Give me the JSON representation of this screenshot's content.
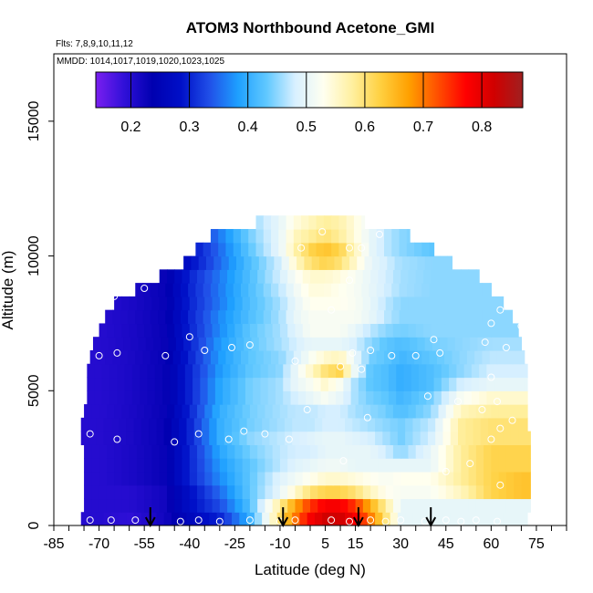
{
  "chart_data": {
    "type": "heatmap",
    "title": "ATOM3 Northbound Acetone_GMI",
    "subtitle_flights": "Flts: 7,8,9,10,11,12",
    "subtitle_dates": "MMDD: 1014,1017,1019,1020,1023,1025",
    "xlabel": "Latitude (deg N)",
    "ylabel": "Altitude (m)",
    "xlim": [
      -85,
      85
    ],
    "ylim": [
      0,
      17500
    ],
    "x_ticks": [
      -85,
      -70,
      -55,
      -40,
      -25,
      -10,
      5,
      15,
      30,
      45,
      60,
      75
    ],
    "x_minor_ticks": [
      -80,
      -75,
      -65,
      -60,
      -50,
      -45,
      -35,
      -30,
      -20,
      -15,
      -5,
      0,
      10,
      20,
      25,
      35,
      40,
      50,
      55,
      65,
      70,
      80,
      85
    ],
    "y_ticks": [
      0,
      5000,
      10000,
      15000
    ],
    "colorbar": {
      "ticks": [
        0.2,
        0.3,
        0.4,
        0.5,
        0.6,
        0.7,
        0.8
      ],
      "range": [
        0.14,
        0.87
      ],
      "colors": [
        "#7a1ff0",
        "#3010d8",
        "#0000b0",
        "#0010c8",
        "#2050e8",
        "#1ea0ff",
        "#60c8ff",
        "#d8f0ff",
        "#fffff0",
        "#fff0a0",
        "#ffd040",
        "#ffa000",
        "#ff5000",
        "#ff0000",
        "#d00000",
        "#a02020"
      ]
    },
    "profile_min_lat": [
      -76,
      -75,
      -75,
      -75,
      -75,
      -75,
      -76,
      -76,
      -75,
      -74,
      -74,
      -74,
      -73,
      -72,
      -70,
      -68,
      -65,
      -58,
      -50,
      -42,
      -38,
      -33,
      -18
    ],
    "profile_max_lat": [
      72,
      73,
      73,
      73,
      73,
      73,
      73,
      72,
      72,
      72,
      72,
      72,
      71,
      70,
      69,
      67,
      64,
      60,
      56,
      47,
      41,
      33,
      18
    ],
    "altitude_levels_m": [
      250,
      750,
      1250,
      1750,
      2250,
      2750,
      3250,
      3750,
      4250,
      4750,
      5250,
      5750,
      6250,
      6750,
      7250,
      7750,
      8250,
      8750,
      9250,
      9750,
      10250,
      10750,
      11250,
      11750,
      12250
    ],
    "latitude_nodes": [
      -80,
      -70,
      -60,
      -48,
      -40,
      -30,
      -20,
      -10,
      -5,
      0,
      5,
      10,
      15,
      20,
      25,
      30,
      40,
      50,
      60,
      70,
      80
    ],
    "acetone_by_altitude_band": [
      [
        0.2,
        0.2,
        0.19,
        0.22,
        0.26,
        0.3,
        0.4,
        0.6,
        0.7,
        0.78,
        0.82,
        0.82,
        0.78,
        0.7,
        0.6,
        0.5,
        0.5,
        0.5,
        0.5,
        0.5,
        0.5
      ],
      [
        0.2,
        0.2,
        0.2,
        0.22,
        0.28,
        0.33,
        0.42,
        0.58,
        0.67,
        0.74,
        0.78,
        0.78,
        0.74,
        0.66,
        0.58,
        0.5,
        0.5,
        0.5,
        0.5,
        0.5,
        0.5
      ],
      [
        0.2,
        0.2,
        0.2,
        0.22,
        0.28,
        0.35,
        0.43,
        0.5,
        0.55,
        0.6,
        0.62,
        0.62,
        0.6,
        0.56,
        0.53,
        0.52,
        0.52,
        0.56,
        0.62,
        0.64,
        0.64
      ],
      [
        0.2,
        0.2,
        0.21,
        0.23,
        0.3,
        0.37,
        0.43,
        0.49,
        0.51,
        0.53,
        0.55,
        0.55,
        0.54,
        0.53,
        0.52,
        0.53,
        0.53,
        0.58,
        0.62,
        0.64,
        0.64
      ],
      [
        0.2,
        0.2,
        0.21,
        0.23,
        0.3,
        0.38,
        0.43,
        0.47,
        0.49,
        0.5,
        0.51,
        0.51,
        0.5,
        0.5,
        0.5,
        0.5,
        0.5,
        0.58,
        0.62,
        0.62,
        0.62
      ],
      [
        0.2,
        0.2,
        0.21,
        0.23,
        0.3,
        0.39,
        0.44,
        0.47,
        0.48,
        0.48,
        0.5,
        0.5,
        0.5,
        0.5,
        0.48,
        0.45,
        0.5,
        0.58,
        0.62,
        0.62,
        0.62
      ],
      [
        0.2,
        0.2,
        0.21,
        0.23,
        0.3,
        0.4,
        0.45,
        0.47,
        0.48,
        0.49,
        0.5,
        0.5,
        0.49,
        0.48,
        0.46,
        0.44,
        0.48,
        0.58,
        0.6,
        0.6,
        0.6
      ],
      [
        0.2,
        0.2,
        0.21,
        0.23,
        0.3,
        0.4,
        0.44,
        0.46,
        0.47,
        0.47,
        0.48,
        0.48,
        0.47,
        0.46,
        0.45,
        0.44,
        0.47,
        0.58,
        0.6,
        0.6,
        0.6
      ],
      [
        0.2,
        0.2,
        0.21,
        0.23,
        0.3,
        0.4,
        0.44,
        0.46,
        0.47,
        0.47,
        0.48,
        0.48,
        0.46,
        0.45,
        0.44,
        0.42,
        0.45,
        0.56,
        0.58,
        0.58,
        0.58
      ],
      [
        0.2,
        0.2,
        0.21,
        0.23,
        0.3,
        0.39,
        0.44,
        0.46,
        0.48,
        0.5,
        0.52,
        0.5,
        0.46,
        0.44,
        0.43,
        0.41,
        0.44,
        0.52,
        0.55,
        0.55,
        0.55
      ],
      [
        0.2,
        0.2,
        0.21,
        0.23,
        0.3,
        0.39,
        0.44,
        0.46,
        0.5,
        0.52,
        0.55,
        0.52,
        0.46,
        0.43,
        0.42,
        0.4,
        0.42,
        0.48,
        0.5,
        0.5,
        0.5
      ],
      [
        0.2,
        0.2,
        0.21,
        0.23,
        0.3,
        0.38,
        0.43,
        0.45,
        0.5,
        0.55,
        0.6,
        0.62,
        0.5,
        0.43,
        0.42,
        0.4,
        0.42,
        0.45,
        0.48,
        0.48,
        0.48
      ],
      [
        0.2,
        0.2,
        0.21,
        0.23,
        0.3,
        0.38,
        0.43,
        0.45,
        0.48,
        0.52,
        0.55,
        0.56,
        0.5,
        0.44,
        0.43,
        0.41,
        0.43,
        0.45,
        0.47,
        0.47,
        0.47
      ],
      [
        0.2,
        0.2,
        0.21,
        0.23,
        0.3,
        0.38,
        0.43,
        0.46,
        0.48,
        0.5,
        0.5,
        0.5,
        0.48,
        0.45,
        0.43,
        0.42,
        0.44,
        0.45,
        0.46,
        0.46,
        0.46
      ],
      [
        0.2,
        0.2,
        0.21,
        0.23,
        0.3,
        0.37,
        0.43,
        0.46,
        0.49,
        0.52,
        0.52,
        0.52,
        0.5,
        0.47,
        0.45,
        0.44,
        0.45,
        0.45,
        0.45,
        0.45,
        0.45
      ],
      [
        0.2,
        0.2,
        0.21,
        0.23,
        0.3,
        0.37,
        0.42,
        0.46,
        0.5,
        0.52,
        0.52,
        0.52,
        0.52,
        0.5,
        0.47,
        0.45,
        0.45,
        0.45,
        0.45,
        0.45,
        0.45
      ],
      [
        0.2,
        0.2,
        0.21,
        0.23,
        0.3,
        0.36,
        0.42,
        0.46,
        0.5,
        0.53,
        0.53,
        0.53,
        0.52,
        0.5,
        0.47,
        0.45,
        0.45,
        0.45,
        0.45,
        0.45,
        0.45
      ],
      [
        0.2,
        0.2,
        0.21,
        0.23,
        0.3,
        0.36,
        0.42,
        0.47,
        0.51,
        0.54,
        0.54,
        0.53,
        0.52,
        0.5,
        0.48,
        0.46,
        0.45,
        0.45,
        0.45,
        0.45,
        0.45
      ],
      [
        0.2,
        0.2,
        0.21,
        0.23,
        0.3,
        0.36,
        0.42,
        0.48,
        0.52,
        0.55,
        0.55,
        0.54,
        0.52,
        0.5,
        0.48,
        0.46,
        0.45,
        0.45,
        0.45,
        0.45,
        0.45
      ],
      [
        0.15,
        0.17,
        0.19,
        0.21,
        0.28,
        0.35,
        0.42,
        0.48,
        0.55,
        0.6,
        0.62,
        0.6,
        0.55,
        0.5,
        0.48,
        0.46,
        0.45,
        0.45,
        0.45,
        0.45,
        0.45
      ],
      [
        0.15,
        0.17,
        0.19,
        0.21,
        0.28,
        0.35,
        0.43,
        0.5,
        0.57,
        0.62,
        0.64,
        0.62,
        0.56,
        0.5,
        0.47,
        0.45,
        0.43,
        0.42,
        0.42,
        0.42,
        0.42
      ],
      [
        0.15,
        0.17,
        0.19,
        0.21,
        0.28,
        0.36,
        0.44,
        0.5,
        0.56,
        0.58,
        0.6,
        0.58,
        0.54,
        0.5,
        0.47,
        0.45,
        0.43,
        0.42,
        0.42,
        0.42,
        0.42
      ],
      [
        0.2,
        0.2,
        0.2,
        0.22,
        0.28,
        0.36,
        0.45,
        0.5,
        0.54,
        0.56,
        0.58,
        0.57,
        0.54,
        0.5,
        0.47,
        0.45,
        0.43,
        0.42,
        0.42,
        0.42,
        0.42
      ],
      [
        0.2,
        0.2,
        0.2,
        0.22,
        0.28,
        0.37,
        0.46,
        0.5,
        0.53,
        0.54,
        0.55,
        0.55,
        0.52,
        0.5,
        0.47,
        0.45,
        0.43,
        0.42,
        0.42,
        0.42,
        0.42
      ],
      [
        0.2,
        0.2,
        0.2,
        0.22,
        0.28,
        0.37,
        0.44,
        0.5,
        0.52,
        0.52,
        0.52,
        0.52,
        0.5,
        0.48,
        0.46,
        0.45,
        0.43,
        0.42,
        0.42,
        0.42,
        0.42
      ]
    ],
    "observation_points": [
      [
        -73,
        200
      ],
      [
        -66,
        200
      ],
      [
        -58,
        200
      ],
      [
        -43,
        150
      ],
      [
        -37,
        200
      ],
      [
        -30,
        150
      ],
      [
        -20,
        200
      ],
      [
        -10,
        150
      ],
      [
        -5,
        200
      ],
      [
        7,
        200
      ],
      [
        13,
        150
      ],
      [
        20,
        200
      ],
      [
        25,
        150
      ],
      [
        30,
        200
      ],
      [
        38,
        150
      ],
      [
        45,
        200
      ],
      [
        50,
        150
      ],
      [
        55,
        200
      ],
      [
        62,
        150
      ],
      [
        -78,
        5400
      ],
      [
        -75,
        7500
      ],
      [
        -73,
        3400
      ],
      [
        -72,
        9500
      ],
      [
        -70,
        6300
      ],
      [
        -65,
        8500
      ],
      [
        -64,
        6400
      ],
      [
        -64,
        3200
      ],
      [
        -63,
        10500
      ],
      [
        -55,
        8800
      ],
      [
        -48,
        6300
      ],
      [
        -47,
        10000
      ],
      [
        -45,
        3100
      ],
      [
        -43,
        10500
      ],
      [
        -40,
        7000
      ],
      [
        -37,
        3400
      ],
      [
        -35,
        6500
      ],
      [
        -30,
        11700
      ],
      [
        -27,
        3200
      ],
      [
        -26,
        6600
      ],
      [
        -22,
        3500
      ],
      [
        -22,
        11800
      ],
      [
        -20,
        6700
      ],
      [
        -15,
        3400
      ],
      [
        -7,
        3200
      ],
      [
        -5,
        6100
      ],
      [
        -3,
        10300
      ],
      [
        -1,
        4300
      ],
      [
        4,
        10900
      ],
      [
        7,
        8000
      ],
      [
        10,
        5900
      ],
      [
        11,
        2400
      ],
      [
        13,
        9100
      ],
      [
        13,
        10300
      ],
      [
        14,
        6400
      ],
      [
        17,
        5800
      ],
      [
        17,
        10300
      ],
      [
        19,
        4000
      ],
      [
        20,
        6500
      ],
      [
        23,
        10800
      ],
      [
        27,
        6300
      ],
      [
        33,
        11400
      ],
      [
        35,
        6300
      ],
      [
        39,
        4800
      ],
      [
        41,
        6900
      ],
      [
        43,
        6400
      ],
      [
        45,
        2000
      ],
      [
        49,
        4600
      ],
      [
        53,
        2300
      ],
      [
        57,
        4300
      ],
      [
        58,
        6800
      ],
      [
        60,
        7500
      ],
      [
        60,
        5500
      ],
      [
        60,
        3200
      ],
      [
        62,
        4600
      ],
      [
        63,
        1500
      ],
      [
        63,
        3600
      ],
      [
        63,
        8000
      ],
      [
        65,
        6600
      ],
      [
        67,
        3900
      ],
      [
        70,
        7400
      ]
    ],
    "arrow_latitudes": [
      -53,
      -9,
      16,
      40
    ]
  }
}
